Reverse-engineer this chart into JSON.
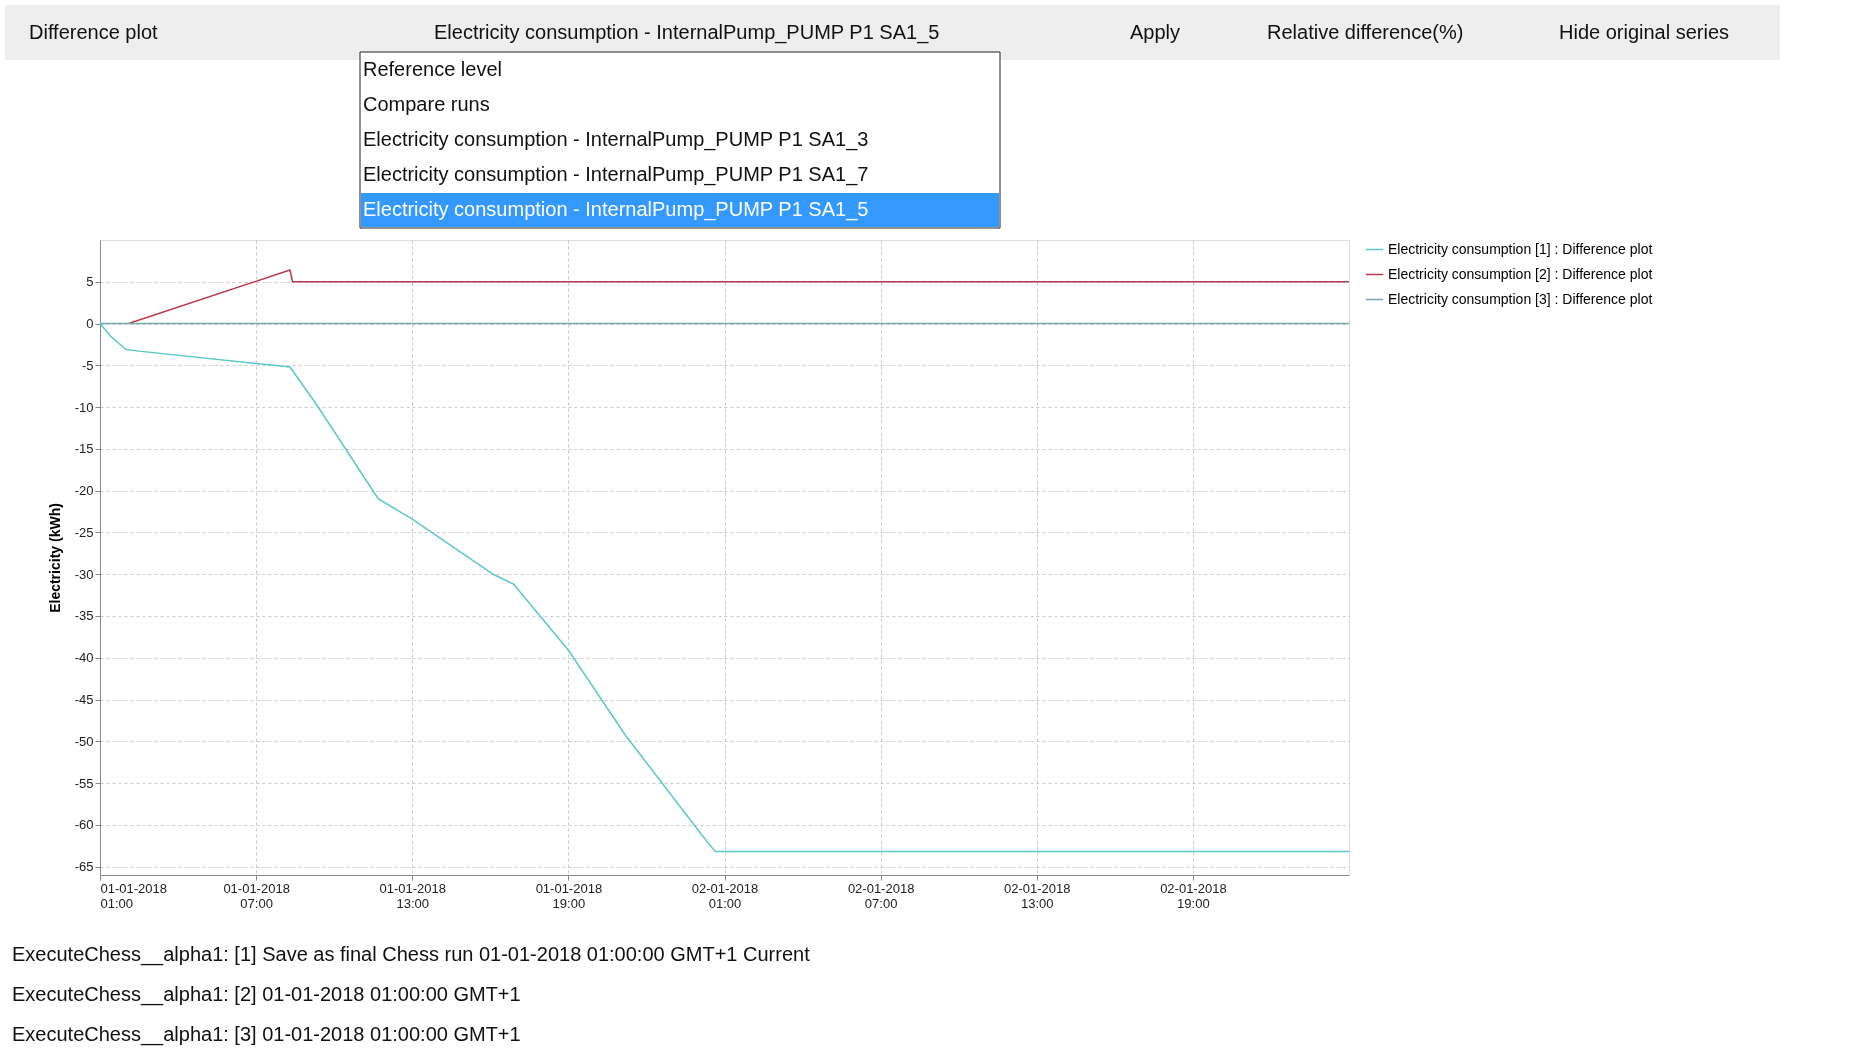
{
  "chart_data": {
    "type": "line",
    "ylabel": "Electricity (kWh)",
    "xlim": [
      "2018-01-01T01:00",
      "2018-01-03T01:00"
    ],
    "ylim": [
      -66,
      10
    ],
    "xticks": [
      {
        "value": "2018-01-01T01:00",
        "label": "01-01-2018 01:00"
      },
      {
        "value": "2018-01-01T07:00",
        "label": "01-01-2018 07:00"
      },
      {
        "value": "2018-01-01T13:00",
        "label": "01-01-2018 13:00"
      },
      {
        "value": "2018-01-01T19:00",
        "label": "01-01-2018 19:00"
      },
      {
        "value": "2018-01-02T01:00",
        "label": "02-01-2018 01:00"
      },
      {
        "value": "2018-01-02T07:00",
        "label": "02-01-2018 07:00"
      },
      {
        "value": "2018-01-02T13:00",
        "label": "02-01-2018 13:00"
      },
      {
        "value": "2018-01-02T19:00",
        "label": "02-01-2018 19:00"
      }
    ],
    "yticks": [
      5,
      0,
      -5,
      -10,
      -15,
      -20,
      -25,
      -30,
      -35,
      -40,
      -45,
      -50,
      -55,
      -60,
      -65
    ],
    "grid": true,
    "legend": "top right",
    "line_style": "solid",
    "marker": "none",
    "series": [
      {
        "name": "Electricity consumption [1]  : Difference plot",
        "color": "#5cc8c8",
        "x": [
          "2018-01-01T01:00",
          "2018-01-01T01:24",
          "2018-01-01T02:00",
          "2018-01-01T02:30",
          "2018-01-01T08:18",
          "2018-01-01T09:18",
          "2018-01-01T11:42",
          "2018-01-01T13:00",
          "2018-01-01T16:06",
          "2018-01-01T16:54",
          "2018-01-01T19:00",
          "2018-01-01T21:12",
          "2018-01-02T00:06",
          "2018-01-02T00:39",
          "2018-01-03T01:00"
        ],
        "values": [
          0,
          -1.5,
          -3.1,
          -3.3,
          -5.2,
          -9.6,
          -21,
          -23.4,
          -30,
          -31.2,
          -39.1,
          -49.3,
          -61.1,
          -63.2,
          -63.2
        ]
      },
      {
        "name": "Electricity consumption [2]  : Difference plot",
        "color": "#b83a4a",
        "x": [
          "2018-01-01T02:06",
          "2018-01-01T08:18",
          "2018-01-01T08:24",
          "2018-01-03T01:00"
        ],
        "values": [
          0,
          6.4,
          5,
          5
        ]
      },
      {
        "name": "Electricity consumption [3]  : Difference plot",
        "color": "#7aa7b0",
        "x": [
          "2018-01-01T01:00",
          "2018-01-03T01:00"
        ],
        "values": [
          0,
          0
        ]
      }
    ],
    "annotations": [
      "Difference plot",
      "Electricity consumption - InternalPump_PUMP P1 SA1_5",
      "Apply",
      "Relative difference(%)",
      "Hide original series",
      "Reference level",
      "Compare runs",
      "Electricity consumption - InternalPump_PUMP P1 SA1_3",
      "Electricity consumption - InternalPump_PUMP P1 SA1_7",
      "Electricity consumption - InternalPump_PUMP P1 SA1_5",
      "ExecuteChess__alpha1: [1] Save as final Chess run 01-01-2018 01:00:00 GMT+1 Current",
      "ExecuteChess__alpha1: [2] 01-01-2018 01:00:00 GMT+1",
      "ExecuteChess__alpha1: [3] 01-01-2018 01:00:00 GMT+1"
    ]
  }
}
